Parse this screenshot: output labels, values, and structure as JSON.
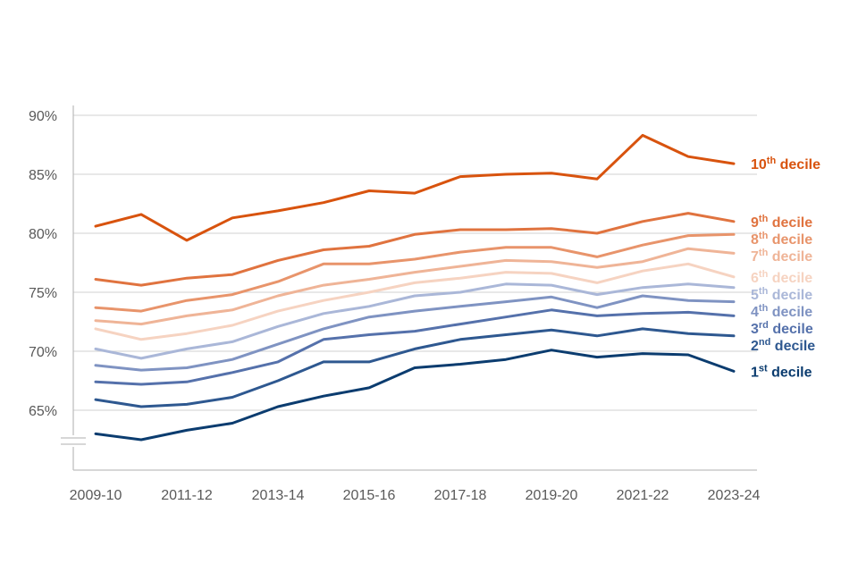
{
  "chart_data": {
    "type": "line",
    "title": "",
    "xlabel": "",
    "ylabel": "",
    "x": [
      "2009-10",
      "2010-11",
      "2011-12",
      "2012-13",
      "2013-14",
      "2014-15",
      "2015-16",
      "2016-17",
      "2017-18",
      "2018-19",
      "2019-20",
      "2020-21",
      "2021-22",
      "2022-23",
      "2023-24"
    ],
    "x_tick_labels": [
      "2009-10",
      "2011-12",
      "2013-14",
      "2015-16",
      "2017-18",
      "2019-20",
      "2021-22",
      "2023-24"
    ],
    "y_tick_labels": [
      "90%",
      "85%",
      "80%",
      "75%",
      "70%",
      "65%"
    ],
    "ylim": [
      62,
      91
    ],
    "y_axis_break": true,
    "grid": "horizontal",
    "series": [
      {
        "name": "1st decile",
        "color": "#0b3c6f",
        "values": [
          63.0,
          62.5,
          63.3,
          63.9,
          65.3,
          66.2,
          66.9,
          68.6,
          68.9,
          69.3,
          70.1,
          69.5,
          69.8,
          69.7,
          68.3
        ]
      },
      {
        "name": "2nd decile",
        "color": "#2e5890",
        "values": [
          65.9,
          65.3,
          65.5,
          66.1,
          67.5,
          69.1,
          69.1,
          70.2,
          71.0,
          71.4,
          71.8,
          71.3,
          71.9,
          71.5,
          71.3
        ]
      },
      {
        "name": "3rd decile",
        "color": "#5571ab",
        "values": [
          67.4,
          67.2,
          67.4,
          68.2,
          69.1,
          71.0,
          71.4,
          71.7,
          72.3,
          72.9,
          73.5,
          73.0,
          73.2,
          73.3,
          73.0
        ]
      },
      {
        "name": "4th decile",
        "color": "#7f93c2",
        "values": [
          68.8,
          68.4,
          68.6,
          69.3,
          70.6,
          71.9,
          72.9,
          73.4,
          73.8,
          74.2,
          74.6,
          73.7,
          74.7,
          74.3,
          74.2
        ]
      },
      {
        "name": "5th decile",
        "color": "#aab7d8",
        "values": [
          70.2,
          69.4,
          70.2,
          70.8,
          72.1,
          73.2,
          73.8,
          74.7,
          75.0,
          75.7,
          75.6,
          74.8,
          75.4,
          75.7,
          75.4
        ]
      },
      {
        "name": "6th decile",
        "color": "#f6d3c1",
        "values": [
          71.9,
          71.0,
          71.5,
          72.2,
          73.4,
          74.3,
          75.0,
          75.8,
          76.2,
          76.7,
          76.6,
          75.8,
          76.8,
          77.4,
          76.3
        ]
      },
      {
        "name": "7th decile",
        "color": "#efb497",
        "values": [
          72.6,
          72.3,
          73.0,
          73.5,
          74.7,
          75.6,
          76.1,
          76.7,
          77.2,
          77.7,
          77.6,
          77.1,
          77.6,
          78.7,
          78.3
        ]
      },
      {
        "name": "8th decile",
        "color": "#e8946b",
        "values": [
          73.7,
          73.4,
          74.3,
          74.8,
          75.9,
          77.4,
          77.4,
          77.8,
          78.4,
          78.8,
          78.8,
          78.0,
          79.0,
          79.8,
          79.9
        ]
      },
      {
        "name": "9th decile",
        "color": "#e0733f",
        "values": [
          76.1,
          75.6,
          76.2,
          76.5,
          77.7,
          78.6,
          78.9,
          79.9,
          80.3,
          80.3,
          80.4,
          80.0,
          81.0,
          81.7,
          81.0
        ]
      },
      {
        "name": "10th decile",
        "color": "#d8530e",
        "values": [
          80.6,
          81.6,
          79.4,
          81.3,
          81.9,
          82.6,
          83.6,
          83.4,
          84.8,
          85.0,
          85.1,
          84.6,
          88.3,
          86.5,
          85.9
        ]
      }
    ],
    "series_label_parts": [
      {
        "num": "1",
        "sup": "st",
        "rest": " decile"
      },
      {
        "num": "2",
        "sup": "nd",
        "rest": " decile"
      },
      {
        "num": "3",
        "sup": "rd",
        "rest": " decile"
      },
      {
        "num": "4",
        "sup": "th",
        "rest": " decile"
      },
      {
        "num": "5",
        "sup": "th",
        "rest": " decile"
      },
      {
        "num": "6",
        "sup": "th",
        "rest": " decile"
      },
      {
        "num": "7",
        "sup": "th",
        "rest": " decile"
      },
      {
        "num": "8",
        "sup": "th",
        "rest": " decile"
      },
      {
        "num": "9",
        "sup": "th",
        "rest": " decile"
      },
      {
        "num": "10",
        "sup": "th",
        "rest": " decile"
      }
    ],
    "colors": {
      "grid": "#d9d9d9",
      "axis": "#bfbfbf",
      "tick_text": "#595959"
    }
  }
}
